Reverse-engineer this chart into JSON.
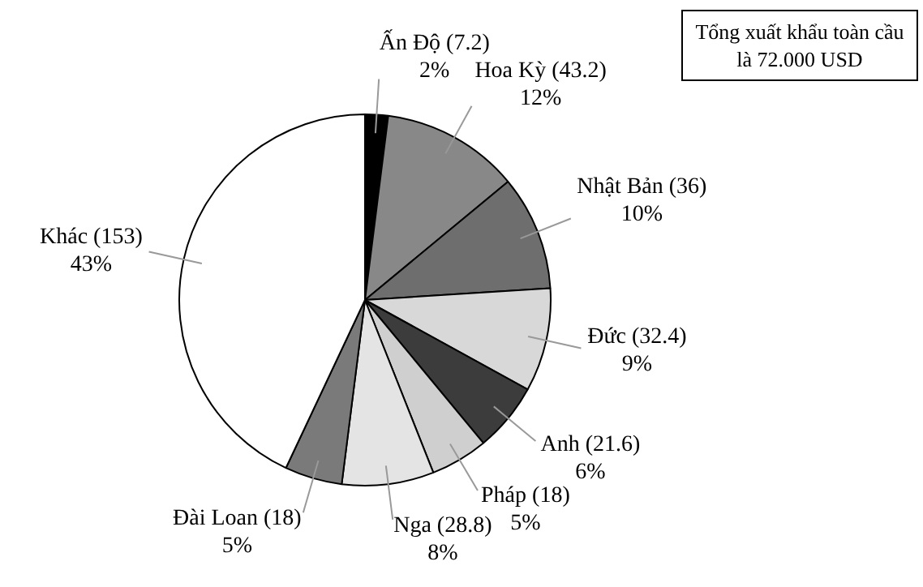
{
  "chart_data": {
    "type": "pie",
    "categories": [
      "Ấn Độ (7.2)",
      "Hoa Kỳ (43.2)",
      "Nhật Bản (36)",
      "Đức (32.4)",
      "Anh (21.6)",
      "Pháp (18)",
      "Nga (28.8)",
      "Đài Loan (18)",
      "Khác (153)"
    ],
    "values": [
      2,
      12,
      10,
      9,
      6,
      5,
      8,
      5,
      43
    ],
    "value_labels": [
      "2%",
      "12%",
      "10%",
      "9%",
      "6%",
      "5%",
      "8%",
      "5%",
      "43%"
    ],
    "colors": [
      "#000000",
      "#888888",
      "#6e6e6e",
      "#d8d8d8",
      "#3c3c3c",
      "#cfcfcf",
      "#e4e4e4",
      "#7a7a7a",
      "#ffffff"
    ],
    "annotations": [
      "Tổng xuất khẩu toàn cầu là 72.000 USD"
    ],
    "legend": false
  }
}
